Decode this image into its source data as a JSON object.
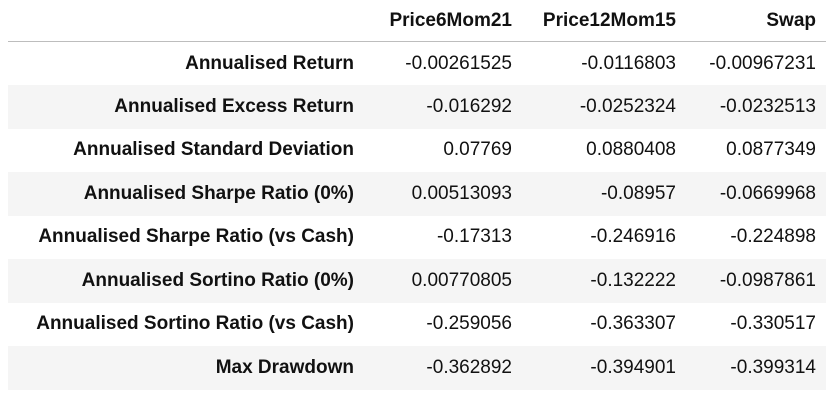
{
  "table": {
    "columns": [
      "",
      "Price6Mom21",
      "Price12Mom15",
      "Swap"
    ],
    "rows": [
      {
        "label": "Annualised Return",
        "values": [
          "-0.00261525",
          "-0.0116803",
          "-0.00967231"
        ]
      },
      {
        "label": "Annualised Excess Return",
        "values": [
          "-0.016292",
          "-0.0252324",
          "-0.0232513"
        ]
      },
      {
        "label": "Annualised Standard Deviation",
        "values": [
          "0.07769",
          "0.0880408",
          "0.0877349"
        ]
      },
      {
        "label": "Annualised Sharpe Ratio (0%)",
        "values": [
          "0.00513093",
          "-0.08957",
          "-0.0669968"
        ]
      },
      {
        "label": "Annualised Sharpe Ratio (vs Cash)",
        "values": [
          "-0.17313",
          "-0.246916",
          "-0.224898"
        ]
      },
      {
        "label": "Annualised Sortino Ratio (0%)",
        "values": [
          "0.00770805",
          "-0.132222",
          "-0.0987861"
        ]
      },
      {
        "label": "Annualised Sortino Ratio (vs Cash)",
        "values": [
          "-0.259056",
          "-0.363307",
          "-0.330517"
        ]
      },
      {
        "label": "Max Drawdown",
        "values": [
          "-0.362892",
          "-0.394901",
          "-0.399314"
        ]
      }
    ]
  },
  "colors": {
    "stripe": "#f5f5f5",
    "header_rule": "#bdbdbd",
    "text": "#111111"
  }
}
